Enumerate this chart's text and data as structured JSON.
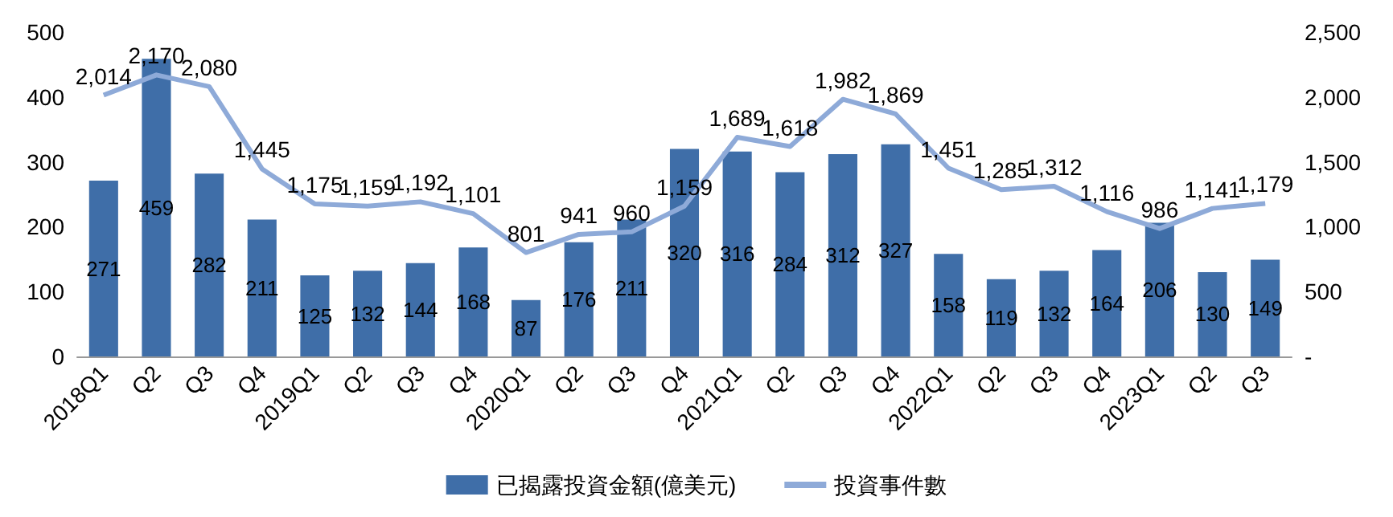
{
  "chart_data": {
    "type": "bar",
    "categories": [
      "2018Q1",
      "Q2",
      "Q3",
      "Q4",
      "2019Q1",
      "Q2",
      "Q3",
      "Q4",
      "2020Q1",
      "Q2",
      "Q3",
      "Q4",
      "2021Q1",
      "Q2",
      "Q3",
      "Q4",
      "2022Q1",
      "Q2",
      "Q3",
      "Q4",
      "2023Q1",
      "Q2",
      "Q3"
    ],
    "series": [
      {
        "name": "已揭露投資金額(億美元)",
        "color": "#3f6ea8",
        "values": [
          271,
          459,
          282,
          211,
          125,
          132,
          144,
          168,
          87,
          176,
          211,
          320,
          316,
          284,
          312,
          327,
          158,
          119,
          132,
          164,
          206,
          130,
          149
        ]
      },
      {
        "name": "投資事件數",
        "type": "line",
        "axis": "y2",
        "color": "#8eaad8",
        "values": [
          2014,
          2170,
          2080,
          1445,
          1175,
          1159,
          1192,
          1101,
          801,
          941,
          960,
          1159,
          1689,
          1618,
          1982,
          1869,
          1451,
          1285,
          1312,
          1116,
          986,
          1141,
          1179
        ],
        "value_labels": [
          "2,014",
          "2,170",
          "2,080",
          "1,445",
          "1,175",
          "1,159",
          "1,192",
          "1,101",
          "801",
          "941",
          "960",
          "1,159",
          "1,689",
          "1,618",
          "1,982",
          "1,869",
          "1,451",
          "1,285",
          "1,312",
          "1,116",
          "986",
          "1,141",
          "1,179"
        ]
      }
    ],
    "ylim": [
      0,
      500
    ],
    "yticks": [
      0,
      100,
      200,
      300,
      400,
      500
    ],
    "y2lim": [
      0,
      2500
    ],
    "y2ticks": [
      {
        "value": 0,
        "label": "-"
      },
      {
        "value": 500,
        "label": "500"
      },
      {
        "value": 1000,
        "label": "1,000"
      },
      {
        "value": 1500,
        "label": "1,500"
      },
      {
        "value": 2000,
        "label": "2,000"
      },
      {
        "value": 2500,
        "label": "2,500"
      }
    ],
    "data_labels": true,
    "grid": false,
    "legend": "bottom",
    "marker": "none"
  }
}
